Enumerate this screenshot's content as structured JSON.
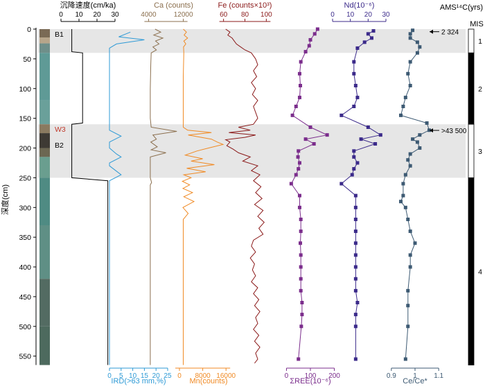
{
  "chart_data": {
    "type": "line",
    "ylabel": "深度(cm)",
    "ylim": [
      0,
      565
    ],
    "yticks": [
      0,
      50,
      100,
      150,
      200,
      250,
      300,
      350,
      400,
      450,
      500,
      550
    ],
    "core_labels": [
      "B1",
      "W3",
      "B2"
    ],
    "bands": [
      {
        "name": "MIS 1 band",
        "from": 0,
        "to": 40,
        "color": "#e6e6e6"
      },
      {
        "name": "MIS 3 band",
        "from": 160,
        "to": 250,
        "color": "#e6e6e6"
      }
    ],
    "panels": [
      {
        "id": "sed_rate",
        "label": "沉降速度(cm/ka)",
        "axis_position": "top",
        "color": "#000000",
        "ticks": [
          0,
          10,
          20,
          30
        ],
        "xlim": [
          0,
          30
        ],
        "points": [
          [
            6,
            0
          ],
          [
            6,
            38
          ],
          [
            12,
            40
          ],
          [
            12,
            158
          ],
          [
            6,
            160
          ],
          [
            6,
            250
          ],
          [
            26,
            255
          ],
          [
            26,
            565
          ]
        ]
      },
      {
        "id": "ird",
        "label": "IRD(>63 mm,%)",
        "axis_position": "bottom",
        "color": "#2e9ad6",
        "ticks": [
          0,
          5,
          10,
          15,
          20,
          25
        ],
        "xlim": [
          0,
          25
        ],
        "points": [
          [
            9,
            5
          ],
          [
            4,
            13
          ],
          [
            15,
            18
          ],
          [
            3,
            25
          ],
          [
            0,
            32
          ],
          [
            0,
            160
          ],
          [
            0,
            170
          ],
          [
            5,
            180
          ],
          [
            0,
            190
          ],
          [
            0,
            200
          ],
          [
            3,
            210
          ],
          [
            5,
            215
          ],
          [
            0,
            225
          ],
          [
            0,
            230
          ],
          [
            5,
            245
          ],
          [
            0,
            255
          ],
          [
            0,
            565
          ]
        ]
      },
      {
        "id": "ca",
        "label": "Ca (counts)",
        "axis_position": "top",
        "color": "#8b6f4e",
        "ticks": [
          4000,
          12000
        ],
        "xlim": [
          2500,
          17000
        ],
        "points": [
          [
            5500,
            0
          ],
          [
            6800,
            5
          ],
          [
            5200,
            10
          ],
          [
            7300,
            15
          ],
          [
            5600,
            20
          ],
          [
            6400,
            25
          ],
          [
            5000,
            30
          ],
          [
            5800,
            35
          ],
          [
            4600,
            40
          ],
          [
            4500,
            60
          ],
          [
            4400,
            100
          ],
          [
            4400,
            150
          ],
          [
            4600,
            165
          ],
          [
            10500,
            172
          ],
          [
            5000,
            178
          ],
          [
            5800,
            185
          ],
          [
            4500,
            190
          ],
          [
            6000,
            198
          ],
          [
            4600,
            203
          ],
          [
            8000,
            208
          ],
          [
            4400,
            215
          ],
          [
            4400,
            250
          ],
          [
            4700,
            258
          ],
          [
            4400,
            262
          ],
          [
            4400,
            565
          ]
        ]
      },
      {
        "id": "mn",
        "label": "Mn(counts)",
        "axis_position": "bottom",
        "color": "#f08a24",
        "ticks": [
          0,
          8000,
          16000
        ],
        "xlim": [
          0,
          20000
        ],
        "points": [
          [
            1300,
            0
          ],
          [
            2400,
            5
          ],
          [
            1600,
            10
          ],
          [
            2800,
            15
          ],
          [
            1500,
            20
          ],
          [
            2200,
            25
          ],
          [
            1400,
            30
          ],
          [
            1500,
            40
          ],
          [
            1300,
            80
          ],
          [
            1300,
            120
          ],
          [
            1300,
            165
          ],
          [
            2800,
            170
          ],
          [
            11000,
            174
          ],
          [
            3000,
            178
          ],
          [
            11000,
            185
          ],
          [
            13000,
            190
          ],
          [
            15000,
            194
          ],
          [
            10000,
            200
          ],
          [
            6000,
            205
          ],
          [
            2000,
            212
          ],
          [
            8000,
            218
          ],
          [
            4000,
            222
          ],
          [
            12000,
            228
          ],
          [
            2500,
            234
          ],
          [
            9000,
            240
          ],
          [
            1500,
            245
          ],
          [
            4000,
            250
          ],
          [
            1000,
            256
          ],
          [
            3500,
            262
          ],
          [
            1200,
            268
          ],
          [
            4500,
            275
          ],
          [
            1500,
            282
          ],
          [
            5000,
            290
          ],
          [
            1200,
            300
          ],
          [
            3000,
            310
          ],
          [
            1300,
            320
          ],
          [
            1300,
            400
          ],
          [
            1300,
            565
          ]
        ]
      },
      {
        "id": "fe",
        "label": "Fe (counts×10³)",
        "axis_position": "top",
        "color": "#8b1a1a",
        "ticks": [
          60,
          80,
          100
        ],
        "xlim": [
          57,
          103
        ],
        "points": [
          [
            62,
            0
          ],
          [
            66,
            5
          ],
          [
            64,
            10
          ],
          [
            68,
            15
          ],
          [
            70,
            20
          ],
          [
            72,
            25
          ],
          [
            76,
            30
          ],
          [
            80,
            35
          ],
          [
            86,
            40
          ],
          [
            90,
            50
          ],
          [
            92,
            60
          ],
          [
            88,
            70
          ],
          [
            91,
            80
          ],
          [
            86,
            90
          ],
          [
            90,
            100
          ],
          [
            87,
            110
          ],
          [
            92,
            120
          ],
          [
            88,
            130
          ],
          [
            90,
            140
          ],
          [
            92,
            150
          ],
          [
            88,
            160
          ],
          [
            74,
            165
          ],
          [
            85,
            170
          ],
          [
            65,
            174
          ],
          [
            90,
            178
          ],
          [
            80,
            182
          ],
          [
            62,
            186
          ],
          [
            66,
            190
          ],
          [
            63,
            196
          ],
          [
            69,
            202
          ],
          [
            74,
            208
          ],
          [
            85,
            215
          ],
          [
            78,
            222
          ],
          [
            92,
            230
          ],
          [
            86,
            238
          ],
          [
            94,
            245
          ],
          [
            88,
            255
          ],
          [
            95,
            265
          ],
          [
            90,
            275
          ],
          [
            96,
            285
          ],
          [
            89,
            295
          ],
          [
            97,
            305
          ],
          [
            92,
            315
          ],
          [
            98,
            325
          ],
          [
            93,
            335
          ],
          [
            97,
            345
          ],
          [
            88,
            355
          ],
          [
            86,
            365
          ],
          [
            90,
            375
          ],
          [
            85,
            385
          ],
          [
            89,
            395
          ],
          [
            87,
            405
          ],
          [
            90,
            415
          ],
          [
            86,
            425
          ],
          [
            92,
            435
          ],
          [
            88,
            445
          ],
          [
            93,
            455
          ],
          [
            89,
            465
          ],
          [
            94,
            475
          ],
          [
            90,
            485
          ],
          [
            92,
            495
          ],
          [
            88,
            505
          ],
          [
            93,
            515
          ],
          [
            89,
            525
          ],
          [
            94,
            535
          ],
          [
            90,
            545
          ],
          [
            92,
            555
          ],
          [
            89,
            562
          ]
        ]
      },
      {
        "id": "ree",
        "label": "ΣREE(10⁻⁶)",
        "axis_position": "bottom",
        "color": "#7b2d8c",
        "ticks": [
          0,
          100,
          200
        ],
        "xlim": [
          -10,
          210
        ],
        "markers": true,
        "points": [
          [
            130,
            0
          ],
          [
            118,
            8
          ],
          [
            100,
            18
          ],
          [
            95,
            28
          ],
          [
            80,
            38
          ],
          [
            60,
            55
          ],
          [
            55,
            75
          ],
          [
            58,
            95
          ],
          [
            55,
            115
          ],
          [
            40,
            130
          ],
          [
            25,
            145
          ],
          [
            100,
            165
          ],
          [
            170,
            178
          ],
          [
            80,
            185
          ],
          [
            115,
            193
          ],
          [
            50,
            205
          ],
          [
            48,
            215
          ],
          [
            55,
            225
          ],
          [
            50,
            235
          ],
          [
            40,
            245
          ],
          [
            20,
            260
          ],
          [
            55,
            280
          ],
          [
            55,
            300
          ],
          [
            60,
            320
          ],
          [
            60,
            340
          ],
          [
            58,
            360
          ],
          [
            60,
            380
          ],
          [
            60,
            400
          ],
          [
            60,
            420
          ],
          [
            60,
            440
          ],
          [
            65,
            460
          ],
          [
            65,
            480
          ],
          [
            62,
            500
          ],
          [
            50,
            555
          ]
        ]
      },
      {
        "id": "nd",
        "label": "Nd(10⁻⁶)",
        "axis_position": "top",
        "color": "#3b2a8a",
        "ticks": [
          0,
          10,
          20,
          30
        ],
        "xlim": [
          0,
          30
        ],
        "markers": true,
        "points": [
          [
            23,
            3
          ],
          [
            20,
            8
          ],
          [
            22,
            15
          ],
          [
            18,
            22
          ],
          [
            14,
            32
          ],
          [
            12,
            55
          ],
          [
            12,
            75
          ],
          [
            13,
            95
          ],
          [
            14,
            115
          ],
          [
            12,
            130
          ],
          [
            5,
            145
          ],
          [
            20,
            165
          ],
          [
            27,
            178
          ],
          [
            16,
            185
          ],
          [
            24,
            193
          ],
          [
            12,
            205
          ],
          [
            12,
            215
          ],
          [
            14,
            225
          ],
          [
            12,
            235
          ],
          [
            11,
            245
          ],
          [
            5,
            260
          ],
          [
            13,
            280
          ],
          [
            13,
            300
          ],
          [
            13,
            320
          ],
          [
            13,
            340
          ],
          [
            13,
            360
          ],
          [
            13,
            380
          ],
          [
            13,
            400
          ],
          [
            13,
            420
          ],
          [
            13,
            440
          ],
          [
            14,
            460
          ],
          [
            13,
            480
          ],
          [
            13,
            500
          ],
          [
            13,
            555
          ]
        ]
      },
      {
        "id": "ce",
        "label": "Ce/Ce*",
        "axis_position": "bottom",
        "color": "#3d5a73",
        "ticks": [
          0.9,
          1.0,
          1.1
        ],
        "xlim": [
          0.88,
          1.12
        ],
        "markers": true,
        "points": [
          [
            0.99,
            2
          ],
          [
            0.98,
            8
          ],
          [
            0.98,
            15
          ],
          [
            1.01,
            22
          ],
          [
            1.02,
            30
          ],
          [
            1.01,
            40
          ],
          [
            0.98,
            55
          ],
          [
            0.97,
            75
          ],
          [
            0.98,
            95
          ],
          [
            0.96,
            115
          ],
          [
            0.95,
            130
          ],
          [
            0.94,
            145
          ],
          [
            1.05,
            158
          ],
          [
            1.06,
            170
          ],
          [
            1.02,
            178
          ],
          [
            0.99,
            185
          ],
          [
            1.01,
            190
          ],
          [
            1.02,
            200
          ],
          [
            0.98,
            210
          ],
          [
            0.97,
            220
          ],
          [
            0.98,
            230
          ],
          [
            0.96,
            245
          ],
          [
            0.95,
            260
          ],
          [
            0.95,
            280
          ],
          [
            0.94,
            290
          ],
          [
            0.96,
            300
          ],
          [
            0.97,
            320
          ],
          [
            0.98,
            340
          ],
          [
            1.0,
            360
          ],
          [
            0.98,
            380
          ],
          [
            0.98,
            400
          ],
          [
            0.97,
            440
          ],
          [
            0.97,
            465
          ],
          [
            0.97,
            500
          ],
          [
            0.96,
            555
          ]
        ]
      }
    ],
    "ages": [
      {
        "label": "2 324",
        "depth": 2
      },
      {
        "label": ">43 500",
        "depth": 168
      }
    ],
    "mis": {
      "title": "MIS",
      "stages": [
        {
          "label": "1",
          "from": 0,
          "to": 40,
          "fill": "#ffffff"
        },
        {
          "label": "2",
          "from": 40,
          "to": 160,
          "fill": "#000000"
        },
        {
          "label": "3",
          "from": 160,
          "to": 250,
          "fill": "#ffffff"
        },
        {
          "label": "4",
          "from": 250,
          "to": 565,
          "fill": "#000000"
        }
      ]
    },
    "top_right_title": "AMS¹⁴C(yrs)"
  }
}
